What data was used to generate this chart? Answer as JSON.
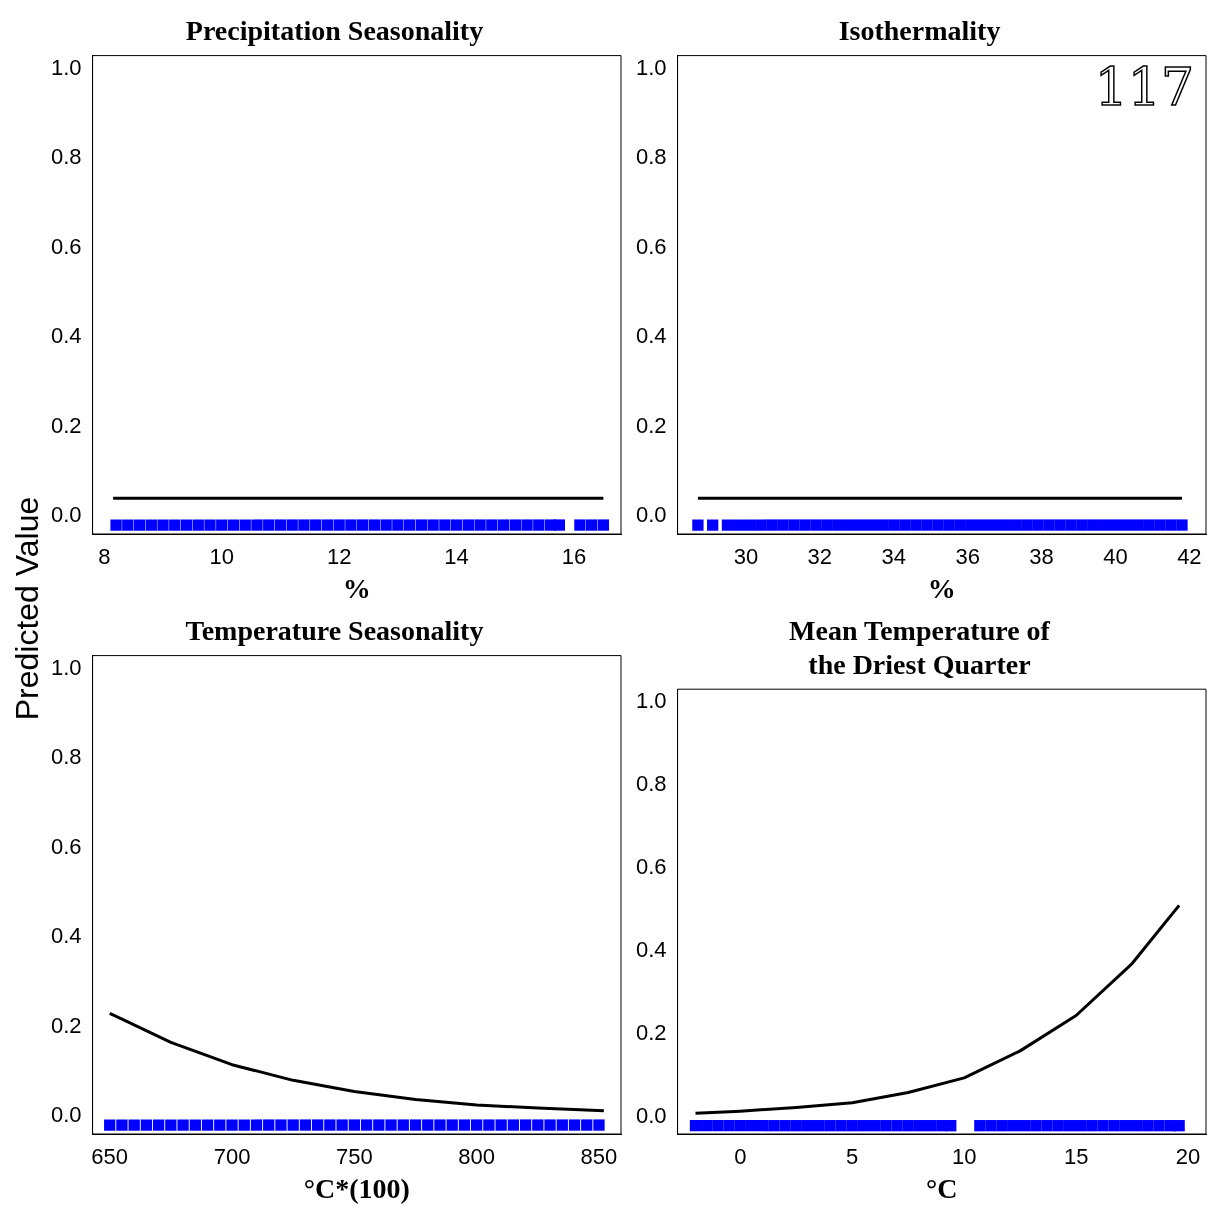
{
  "chart_data": [
    {
      "type": "line",
      "title": "Precipitation Seasonality",
      "xlabel": "%",
      "ylabel": "Predicted Value",
      "xlim": [
        7.8,
        16.8
      ],
      "xticks": [
        8,
        10,
        12,
        14,
        16
      ],
      "ylim": [
        -0.04,
        1.03
      ],
      "yticks": [
        {
          "value": 0,
          "label": "0.0"
        },
        {
          "value": 0.2,
          "label": "0.2"
        },
        {
          "value": 0.4,
          "label": "0.4"
        },
        {
          "value": 0.6,
          "label": "0.6"
        },
        {
          "value": 0.8,
          "label": "0.8"
        },
        {
          "value": 1,
          "label": "1.0"
        }
      ],
      "series": [
        {
          "type": "line",
          "color": "#000000",
          "x": [
            8.15,
            16.5
          ],
          "values": [
            0.04,
            0.04
          ]
        },
        {
          "type": "scatter",
          "marker": "square",
          "color": "#0000ff",
          "x": [
            8.2,
            8.4,
            8.6,
            8.8,
            9,
            9.2,
            9.4,
            9.6,
            9.8,
            10,
            10.2,
            10.4,
            10.6,
            10.8,
            11,
            11.2,
            11.4,
            11.6,
            11.8,
            12,
            12.2,
            12.4,
            12.6,
            12.8,
            13,
            13.2,
            13.4,
            13.6,
            13.8,
            14,
            14.2,
            14.4,
            14.6,
            14.8,
            15,
            15.2,
            15.4,
            15.6,
            15.75,
            16.1,
            16.3,
            16.5
          ],
          "values": [
            -0.02,
            -0.02,
            -0.02,
            -0.02,
            -0.02,
            -0.02,
            -0.02,
            -0.02,
            -0.02,
            -0.02,
            -0.02,
            -0.02,
            -0.02,
            -0.02,
            -0.02,
            -0.02,
            -0.02,
            -0.02,
            -0.02,
            -0.02,
            -0.02,
            -0.02,
            -0.02,
            -0.02,
            -0.02,
            -0.02,
            -0.02,
            -0.02,
            -0.02,
            -0.02,
            -0.02,
            -0.02,
            -0.02,
            -0.02,
            -0.02,
            -0.02,
            -0.02,
            -0.02,
            -0.02,
            -0.02,
            -0.02,
            -0.02
          ]
        }
      ]
    },
    {
      "type": "line",
      "title": "Isothermality",
      "xlabel": "%",
      "xlim": [
        28.15,
        42.45
      ],
      "xticks": [
        30,
        32,
        34,
        36,
        38,
        40,
        42
      ],
      "ylim": [
        -0.04,
        1.03
      ],
      "yticks": [
        {
          "value": 0,
          "label": "0.0"
        },
        {
          "value": 0.2,
          "label": "0.2"
        },
        {
          "value": 0.4,
          "label": "0.4"
        },
        {
          "value": 0.6,
          "label": "0.6"
        },
        {
          "value": 0.8,
          "label": "0.8"
        },
        {
          "value": 1,
          "label": "1.0"
        }
      ],
      "annotations": [
        "117"
      ],
      "series": [
        {
          "type": "line",
          "color": "#000000",
          "x": [
            28.7,
            41.8
          ],
          "values": [
            0.04,
            0.04
          ]
        },
        {
          "type": "scatter",
          "marker": "square",
          "color": "#0000ff",
          "x": [
            28.7,
            29.1,
            29.5,
            29.8,
            30.1,
            30.4,
            30.7,
            31,
            31.3,
            31.6,
            31.9,
            32.2,
            32.5,
            32.8,
            33.1,
            33.4,
            33.7,
            34,
            34.3,
            34.6,
            34.9,
            35.2,
            35.5,
            35.8,
            36.1,
            36.4,
            36.7,
            37,
            37.3,
            37.6,
            37.9,
            38.2,
            38.5,
            38.8,
            39.1,
            39.4,
            39.7,
            40,
            40.3,
            40.6,
            40.9,
            41.2,
            41.5,
            41.8
          ],
          "values": [
            -0.02,
            -0.02,
            -0.02,
            -0.02,
            -0.02,
            -0.02,
            -0.02,
            -0.02,
            -0.02,
            -0.02,
            -0.02,
            -0.02,
            -0.02,
            -0.02,
            -0.02,
            -0.02,
            -0.02,
            -0.02,
            -0.02,
            -0.02,
            -0.02,
            -0.02,
            -0.02,
            -0.02,
            -0.02,
            -0.02,
            -0.02,
            -0.02,
            -0.02,
            -0.02,
            -0.02,
            -0.02,
            -0.02,
            -0.02,
            -0.02,
            -0.02,
            -0.02,
            -0.02,
            -0.02,
            -0.02,
            -0.02,
            -0.02,
            -0.02,
            -0.02
          ]
        }
      ]
    },
    {
      "type": "line",
      "title": "Temperature Seasonality",
      "xlabel": "°C*(100)",
      "xlim": [
        643,
        859
      ],
      "xticks": [
        650,
        700,
        750,
        800,
        850
      ],
      "ylim": [
        -0.04,
        1.03
      ],
      "yticks": [
        {
          "value": 0,
          "label": "0.0"
        },
        {
          "value": 0.2,
          "label": "0.2"
        },
        {
          "value": 0.4,
          "label": "0.4"
        },
        {
          "value": 0.6,
          "label": "0.6"
        },
        {
          "value": 0.8,
          "label": "0.8"
        },
        {
          "value": 1,
          "label": "1.0"
        }
      ],
      "series": [
        {
          "type": "line",
          "color": "#000000",
          "x": [
            650,
            675,
            700,
            725,
            750,
            775,
            800,
            825,
            852
          ],
          "values": [
            0.23,
            0.165,
            0.115,
            0.08,
            0.055,
            0.037,
            0.025,
            0.018,
            0.012
          ]
        },
        {
          "type": "scatter",
          "marker": "square",
          "color": "#0000ff",
          "x": [
            650,
            655,
            660,
            665,
            670,
            675,
            680,
            685,
            690,
            695,
            700,
            705,
            710,
            715,
            720,
            725,
            730,
            735,
            740,
            745,
            750,
            755,
            760,
            765,
            770,
            775,
            780,
            785,
            790,
            795,
            800,
            805,
            810,
            815,
            820,
            825,
            830,
            835,
            840,
            845,
            850
          ],
          "values": [
            -0.02,
            -0.02,
            -0.02,
            -0.02,
            -0.02,
            -0.02,
            -0.02,
            -0.02,
            -0.02,
            -0.02,
            -0.02,
            -0.02,
            -0.02,
            -0.02,
            -0.02,
            -0.02,
            -0.02,
            -0.02,
            -0.02,
            -0.02,
            -0.02,
            -0.02,
            -0.02,
            -0.02,
            -0.02,
            -0.02,
            -0.02,
            -0.02,
            -0.02,
            -0.02,
            -0.02,
            -0.02,
            -0.02,
            -0.02,
            -0.02,
            -0.02,
            -0.02,
            -0.02,
            -0.02,
            -0.02,
            -0.02
          ]
        }
      ]
    },
    {
      "type": "line",
      "title": "Mean Temperature of\nthe Driest Quarter",
      "xlabel": "°C",
      "xlim": [
        -2.8,
        20.8
      ],
      "xticks": [
        0,
        5,
        10,
        15,
        20
      ],
      "ylim": [
        -0.04,
        1.03
      ],
      "yticks": [
        {
          "value": 0,
          "label": "0.0"
        },
        {
          "value": 0.2,
          "label": "0.2"
        },
        {
          "value": 0.4,
          "label": "0.4"
        },
        {
          "value": 0.6,
          "label": "0.6"
        },
        {
          "value": 0.8,
          "label": "0.8"
        },
        {
          "value": 1,
          "label": "1.0"
        }
      ],
      "series": [
        {
          "type": "line",
          "color": "#000000",
          "x": [
            -2,
            0,
            2.5,
            5,
            7.5,
            10,
            12.5,
            15,
            17.5,
            19.6
          ],
          "values": [
            0.01,
            0.015,
            0.024,
            0.035,
            0.06,
            0.095,
            0.16,
            0.245,
            0.37,
            0.51
          ]
        },
        {
          "type": "scatter",
          "marker": "square",
          "color": "#0000ff",
          "x": [
            -2,
            -1.5,
            -1,
            -0.5,
            0,
            0.5,
            1,
            1.5,
            2,
            2.5,
            3,
            3.5,
            4,
            4.5,
            5,
            5.5,
            6,
            6.5,
            7,
            7.5,
            8,
            8.5,
            9,
            9.4,
            10.7,
            11.2,
            11.7,
            12.2,
            12.7,
            13.2,
            13.7,
            14.2,
            14.7,
            15.2,
            15.7,
            16.2,
            16.7,
            17.2,
            17.7,
            18.2,
            18.7,
            19.2,
            19.6
          ],
          "values": [
            -0.02,
            -0.02,
            -0.02,
            -0.02,
            -0.02,
            -0.02,
            -0.02,
            -0.02,
            -0.02,
            -0.02,
            -0.02,
            -0.02,
            -0.02,
            -0.02,
            -0.02,
            -0.02,
            -0.02,
            -0.02,
            -0.02,
            -0.02,
            -0.02,
            -0.02,
            -0.02,
            -0.02,
            -0.02,
            -0.02,
            -0.02,
            -0.02,
            -0.02,
            -0.02,
            -0.02,
            -0.02,
            -0.02,
            -0.02,
            -0.02,
            -0.02,
            -0.02,
            -0.02,
            -0.02,
            -0.02,
            -0.02,
            -0.02,
            -0.02
          ]
        }
      ]
    }
  ]
}
